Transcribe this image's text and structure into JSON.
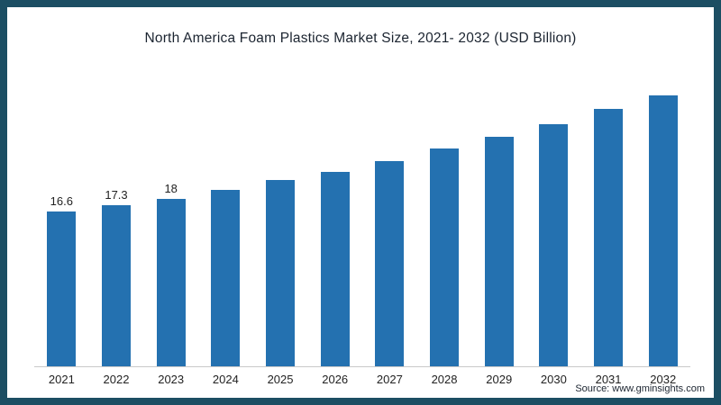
{
  "frame": {
    "border_color": "#1c4e63",
    "background": "#ffffff"
  },
  "chart_data": {
    "type": "bar",
    "title": "North America Foam Plastics Market Size, 2021- 2032 (USD Billion)",
    "categories": [
      "2021",
      "2022",
      "2023",
      "2024",
      "2025",
      "2026",
      "2027",
      "2028",
      "2029",
      "2030",
      "2031",
      "2032"
    ],
    "values": [
      16.6,
      17.3,
      18,
      19,
      20,
      20.9,
      22.1,
      23.4,
      24.7,
      26,
      27.7,
      29.1
    ],
    "data_labels": [
      "16.6",
      "17.3",
      "18",
      "",
      "",
      "",
      "",
      "",
      "",
      "",
      "",
      ""
    ],
    "bar_color": "#2471b0",
    "xlabel": "",
    "ylabel": "",
    "ylim": [
      0,
      30
    ],
    "grid": false,
    "legend": false
  },
  "source": {
    "label": "Source: www.gminsights.com"
  }
}
